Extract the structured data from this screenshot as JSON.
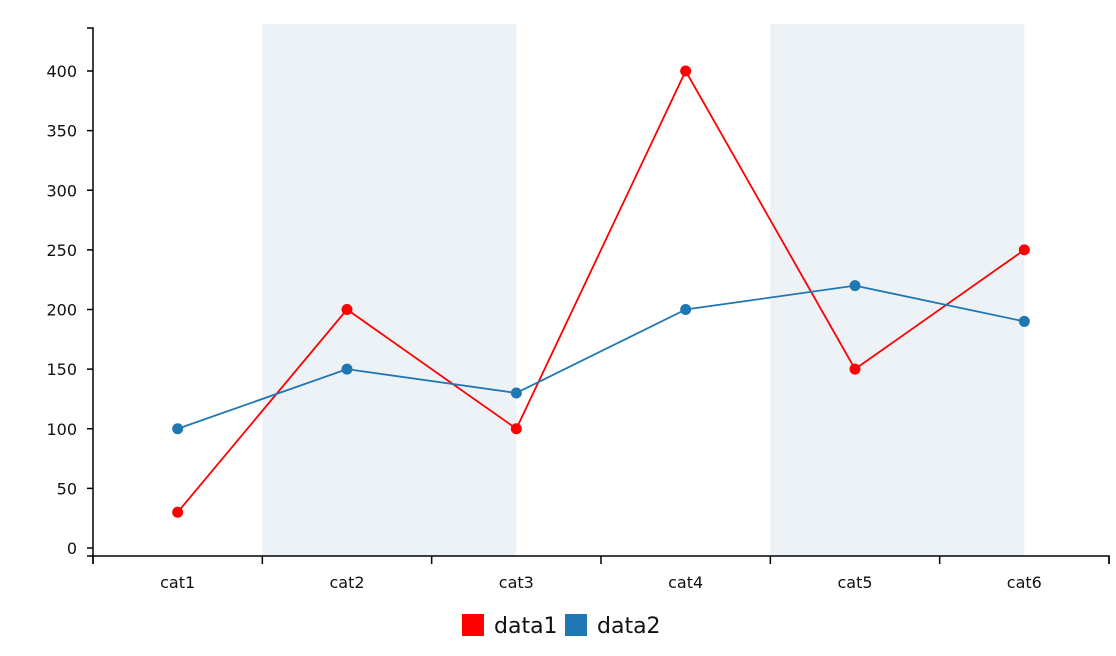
{
  "chart_data": {
    "type": "line",
    "categories": [
      "cat1",
      "cat2",
      "cat3",
      "cat4",
      "cat5",
      "cat6"
    ],
    "series": [
      {
        "name": "data1",
        "values": [
          30,
          200,
          100,
          400,
          150,
          250
        ],
        "color": "#ff0000"
      },
      {
        "name": "data2",
        "values": [
          100,
          150,
          130,
          200,
          220,
          190
        ],
        "color": "#1f77b4"
      }
    ],
    "ylim": [
      0,
      440
    ],
    "yticks": [
      0,
      50,
      100,
      150,
      200,
      250,
      300,
      350,
      400
    ],
    "highlight_regions": [
      {
        "from": "cat2",
        "to": "cat3"
      },
      {
        "from": "cat5",
        "to": "cat6"
      }
    ],
    "highlight_color": "#edf2f6",
    "grid": false,
    "legend_position": "bottom",
    "title": "",
    "xlabel": "",
    "ylabel": ""
  }
}
